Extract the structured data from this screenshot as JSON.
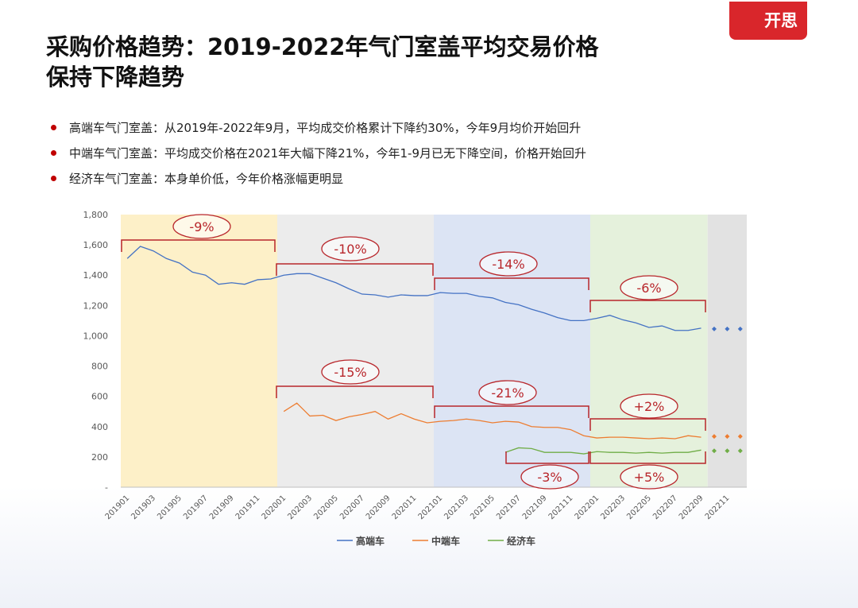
{
  "header": {
    "title_lines": [
      "采购价格趋势：2019-2022年气门室盖平均交易价格",
      "保持下降趋势"
    ],
    "logo": "开思"
  },
  "bullets": [
    "高端车气门室盖：从2019年-2022年9月，平均成交价格累计下降约30%，今年9月均价开始回升",
    "中端车气门室盖：平均成交价格在2021年大幅下降21%，今年1-9月已无下降空间，价格开始回升",
    "经济车气门室盖：本身单价低，今年价格涨幅更明显"
  ],
  "chart_data": {
    "type": "line",
    "categories": [
      "201901",
      null,
      "201903",
      null,
      "201905",
      null,
      "201907",
      null,
      "201909",
      null,
      "201911",
      null,
      "202001",
      null,
      "202003",
      null,
      "202005",
      null,
      "202007",
      null,
      "202009",
      null,
      "202011",
      null,
      "202101",
      null,
      "202103",
      null,
      "202105",
      null,
      "202107",
      null,
      "202109",
      null,
      "202111",
      null,
      "202201",
      null,
      "202203",
      null,
      "202205",
      null,
      "202207",
      null,
      "202209",
      null,
      "202211",
      null
    ],
    "ylim": [
      0,
      1800
    ],
    "yticks": [
      {
        "value": 0,
        "label": "-"
      },
      200,
      400,
      600,
      800,
      {
        "value": 1000,
        "label": "1,000"
      },
      {
        "value": 1200,
        "label": "1,200"
      },
      {
        "value": 1400,
        "label": "1,400"
      },
      {
        "value": 1600,
        "label": "1,600"
      },
      {
        "value": 1800,
        "label": "1,800"
      }
    ],
    "projected_points": 3,
    "series": [
      {
        "name": "高端车",
        "color": "#4472c4",
        "values": [
          1510,
          1590,
          1560,
          1510,
          1480,
          1420,
          1400,
          1340,
          1350,
          1340,
          1370,
          1375,
          1400,
          1410,
          1410,
          1380,
          1350,
          1310,
          1275,
          1270,
          1255,
          1270,
          1265,
          1265,
          1285,
          1280,
          1280,
          1260,
          1250,
          1220,
          1205,
          1175,
          1150,
          1120,
          1100,
          1100,
          1115,
          1135,
          1105,
          1085,
          1055,
          1065,
          1035,
          1035,
          1050,
          1045,
          1045,
          1045
        ]
      },
      {
        "name": "中端车",
        "color": "#ed7d31",
        "values": [
          null,
          null,
          null,
          null,
          null,
          null,
          null,
          null,
          null,
          null,
          null,
          null,
          500,
          555,
          470,
          475,
          440,
          465,
          480,
          500,
          450,
          485,
          450,
          425,
          435,
          440,
          450,
          440,
          425,
          435,
          430,
          400,
          395,
          395,
          380,
          340,
          325,
          330,
          330,
          325,
          320,
          325,
          320,
          340,
          330,
          335,
          335,
          335
        ]
      },
      {
        "name": "经济车",
        "color": "#70ad47",
        "values": [
          null,
          null,
          null,
          null,
          null,
          null,
          null,
          null,
          null,
          null,
          null,
          null,
          null,
          null,
          null,
          null,
          null,
          null,
          null,
          null,
          null,
          null,
          null,
          null,
          null,
          null,
          null,
          null,
          null,
          230,
          260,
          255,
          230,
          230,
          230,
          220,
          235,
          230,
          230,
          225,
          230,
          225,
          230,
          230,
          245,
          240,
          240,
          240
        ]
      }
    ],
    "annotations": [
      "-9%",
      "-10%",
      "-14%",
      "-6%",
      "-15%",
      "-21%",
      "+2%",
      "-3%",
      "+5%"
    ]
  }
}
